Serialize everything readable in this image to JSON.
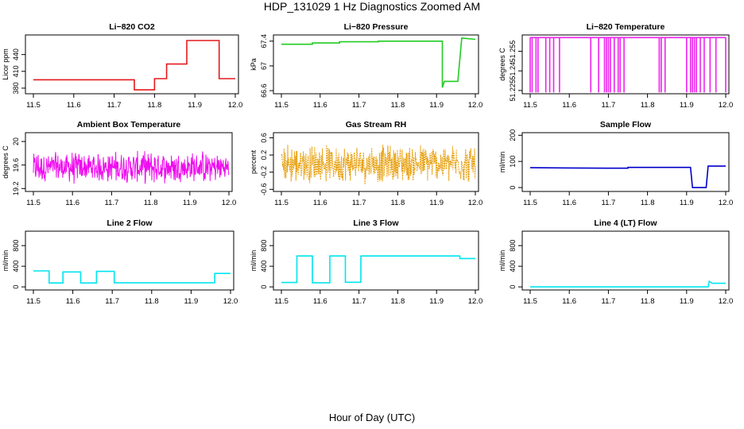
{
  "figure": {
    "title": "HDP_131029  1 Hz Diagnostics Zoomed AM",
    "xlabel": "Hour of Day (UTC)"
  },
  "chart_data": [
    {
      "type": "line",
      "title": "Li−820 CO2",
      "ylabel": "Licor ppm",
      "color": "#e41a1c",
      "xlim": [
        11.5,
        12.0
      ],
      "ylim": [
        370,
        475
      ],
      "xticks": [
        "11.5",
        "11.6",
        "11.7",
        "11.8",
        "11.9",
        "12.0"
      ],
      "yticks": [
        380,
        410,
        440
      ],
      "step_segments": [
        [
          11.5,
          395
        ],
        [
          11.75,
          395
        ],
        [
          11.75,
          377
        ],
        [
          11.8,
          377
        ],
        [
          11.8,
          397
        ],
        [
          11.83,
          397
        ],
        [
          11.83,
          423
        ],
        [
          11.88,
          423
        ],
        [
          11.88,
          465
        ],
        [
          11.96,
          465
        ],
        [
          11.96,
          397
        ],
        [
          12.0,
          397
        ]
      ]
    },
    {
      "type": "line",
      "title": "Li−820 Pressure",
      "ylabel": "kPa",
      "color": "#22cc22",
      "xlim": [
        11.5,
        12.0
      ],
      "ylim": [
        66.55,
        67.5
      ],
      "xticks": [
        "11.5",
        "11.6",
        "11.7",
        "11.8",
        "11.9",
        "12.0"
      ],
      "yticks": [
        66.6,
        67.0,
        67.4
      ],
      "step_segments": [
        [
          11.5,
          67.35
        ],
        [
          11.58,
          67.35
        ],
        [
          11.58,
          67.37
        ],
        [
          11.65,
          67.37
        ],
        [
          11.65,
          67.39
        ],
        [
          11.75,
          67.39
        ],
        [
          11.75,
          67.4
        ],
        [
          11.915,
          67.4
        ],
        [
          11.915,
          66.65
        ],
        [
          11.92,
          66.75
        ],
        [
          11.955,
          66.75
        ],
        [
          11.965,
          67.45
        ],
        [
          12.0,
          67.43
        ]
      ]
    },
    {
      "type": "line",
      "title": "Li−820 Temperature",
      "ylabel": "degrees C",
      "color": "#ee22ee",
      "xlim": [
        11.5,
        12.0
      ],
      "ylim": [
        51.2225,
        51.2675
      ],
      "xticks": [
        "11.5",
        "11.6",
        "11.7",
        "11.8",
        "11.9",
        "12.0"
      ],
      "yticks": [
        51.225,
        51.24,
        51.255
      ],
      "baseline": 51.2655,
      "low": 51.2235,
      "drop_times": [
        11.5,
        11.505,
        11.515,
        11.52,
        11.54,
        11.55,
        11.56,
        11.575,
        11.655,
        11.675,
        11.69,
        11.695,
        11.7,
        11.705,
        11.715,
        11.725,
        11.73,
        11.74,
        11.83,
        11.835,
        11.845,
        11.9,
        11.91,
        11.915,
        11.92,
        11.925,
        11.935,
        11.945,
        11.96,
        11.975,
        12.0
      ]
    },
    {
      "type": "line",
      "title": "Ambient Box Temperature",
      "ylabel": "degrees C",
      "color": "#ee00ee",
      "xlim": [
        11.5,
        12.0
      ],
      "ylim": [
        19.15,
        20.15
      ],
      "xticks": [
        "11.5",
        "11.6",
        "11.7",
        "11.8",
        "11.9",
        "12.0"
      ],
      "yticks": [
        19.2,
        19.6,
        20.0
      ],
      "noise": {
        "center": 19.56,
        "amplitude": 0.3
      }
    },
    {
      "type": "line",
      "title": "Gas Stream RH",
      "ylabel": "percent",
      "color": "#e69b00",
      "xlim": [
        11.5,
        12.0
      ],
      "ylim": [
        -0.65,
        0.72
      ],
      "xticks": [
        "11.5",
        "11.6",
        "11.7",
        "11.8",
        "11.9",
        "12.0"
      ],
      "yticks": [
        -0.6,
        -0.2,
        0.2,
        0.6
      ],
      "noise": {
        "center": 0.0,
        "amplitude": 0.5
      }
    },
    {
      "type": "line",
      "title": "Sample Flow",
      "ylabel": "ml/min",
      "color": "#0000cc",
      "xlim": [
        11.5,
        12.0
      ],
      "ylim": [
        -15,
        210
      ],
      "xticks": [
        "11.5",
        "11.6",
        "11.7",
        "11.8",
        "11.9",
        "12.0"
      ],
      "yticks": [
        0,
        100,
        200
      ],
      "step_segments": [
        [
          11.5,
          76
        ],
        [
          11.6,
          75
        ],
        [
          11.7,
          74
        ],
        [
          11.75,
          74
        ],
        [
          11.75,
          77
        ],
        [
          11.91,
          77
        ],
        [
          11.915,
          0
        ],
        [
          11.95,
          0
        ],
        [
          11.955,
          82
        ],
        [
          12.0,
          82
        ]
      ]
    },
    {
      "type": "line",
      "title": "Line 2 Flow",
      "ylabel": "ml/min",
      "color": "#00e5ee",
      "xlim": [
        11.5,
        12.0
      ],
      "ylim": [
        -60,
        1080
      ],
      "xticks": [
        "11.5",
        "11.6",
        "11.7",
        "11.8",
        "11.9",
        "12.0"
      ],
      "yticks": [
        0,
        400,
        800
      ],
      "step_segments": [
        [
          11.5,
          310
        ],
        [
          11.54,
          310
        ],
        [
          11.54,
          75
        ],
        [
          11.575,
          75
        ],
        [
          11.575,
          290
        ],
        [
          11.62,
          290
        ],
        [
          11.62,
          75
        ],
        [
          11.66,
          75
        ],
        [
          11.66,
          300
        ],
        [
          11.705,
          300
        ],
        [
          11.705,
          80
        ],
        [
          11.96,
          80
        ],
        [
          11.96,
          260
        ],
        [
          12.0,
          260
        ]
      ]
    },
    {
      "type": "line",
      "title": "Line 3 Flow",
      "ylabel": "ml/min",
      "color": "#00e5ee",
      "xlim": [
        11.5,
        12.0
      ],
      "ylim": [
        -60,
        1080
      ],
      "xticks": [
        "11.5",
        "11.6",
        "11.7",
        "11.8",
        "11.9",
        "12.0"
      ],
      "yticks": [
        0,
        400,
        800
      ],
      "step_segments": [
        [
          11.5,
          85
        ],
        [
          11.54,
          85
        ],
        [
          11.54,
          600
        ],
        [
          11.58,
          600
        ],
        [
          11.58,
          80
        ],
        [
          11.625,
          80
        ],
        [
          11.625,
          600
        ],
        [
          11.665,
          600
        ],
        [
          11.665,
          90
        ],
        [
          11.705,
          90
        ],
        [
          11.705,
          600
        ],
        [
          11.96,
          600
        ],
        [
          11.96,
          550
        ],
        [
          12.0,
          550
        ]
      ]
    },
    {
      "type": "line",
      "title": "Line 4 (LT) Flow",
      "ylabel": "ml/min",
      "color": "#00e5ee",
      "xlim": [
        11.5,
        12.0
      ],
      "ylim": [
        -60,
        1080
      ],
      "xticks": [
        "11.5",
        "11.6",
        "11.7",
        "11.8",
        "11.9",
        "12.0"
      ],
      "yticks": [
        0,
        400,
        800
      ],
      "step_segments": [
        [
          11.5,
          0
        ],
        [
          11.955,
          0
        ],
        [
          11.958,
          110
        ],
        [
          11.965,
          70
        ],
        [
          12.0,
          70
        ]
      ]
    }
  ]
}
